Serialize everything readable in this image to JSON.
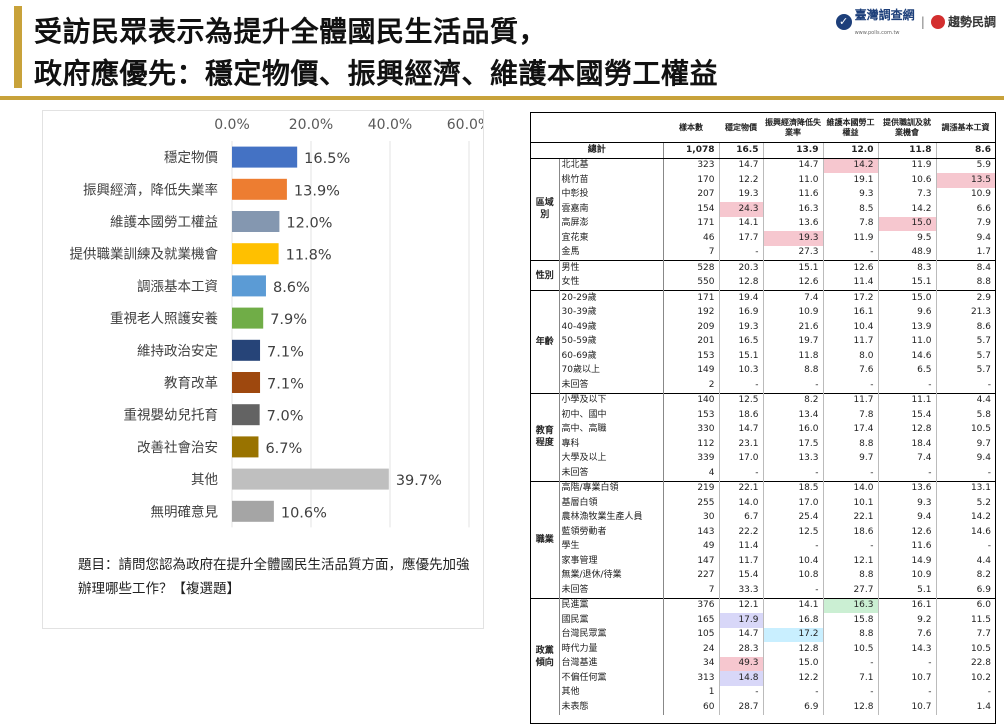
{
  "header": {
    "title_line1": "受訪民眾表示為提升全體國民生活品質，",
    "title_line2": "政府應優先：穩定物價、振興經濟、維護本國勞工權益",
    "logo_primary": "臺灣調查網",
    "logo_primary_sub": "www.polls.com.tw",
    "logo_secondary": "趨勢民調"
  },
  "chart_data": {
    "type": "bar",
    "orientation": "horizontal",
    "categories": [
      "穩定物價",
      "振興經濟，降低失業率",
      "維護本國勞工權益",
      "提供職業訓練及就業機會",
      "調漲基本工資",
      "重視老人照護安養",
      "維持政治安定",
      "教育改革",
      "重視嬰幼兒托育",
      "改善社會治安",
      "其他",
      "無明確意見"
    ],
    "values": [
      16.5,
      13.9,
      12.0,
      11.8,
      8.6,
      7.9,
      7.1,
      7.1,
      7.0,
      6.7,
      39.7,
      10.6
    ],
    "value_labels": [
      "16.5%",
      "13.9%",
      "12.0%",
      "11.8%",
      "8.6%",
      "7.9%",
      "7.1%",
      "7.1%",
      "7.0%",
      "6.7%",
      "39.7%",
      "10.6%"
    ],
    "colors": [
      "#4472c4",
      "#ed7d31",
      "#8497b0",
      "#ffc000",
      "#5b9bd5",
      "#70ad47",
      "#264478",
      "#9e480e",
      "#636363",
      "#997300",
      "#bfbfbf",
      "#a5a5a5"
    ],
    "xlim": [
      0,
      60
    ],
    "xticks": [
      "0.0%",
      "20.0%",
      "40.0%",
      "60.0%"
    ],
    "grid": true,
    "legend": "none"
  },
  "note": "題目：請問您認為政府在提升全體國民生活品質方面，應優先加強辦理哪些工作？【複選題】",
  "table": {
    "columns": [
      "",
      "",
      "樣本數",
      "穩定物價",
      "振興經濟降低失業率",
      "維護本國勞工權益",
      "提供職訓及就業機會",
      "調漲基本工資"
    ],
    "total": {
      "label": "總計",
      "values": [
        "1,078",
        "16.5",
        "13.9",
        "12.0",
        "11.8",
        "8.6"
      ]
    },
    "groups": [
      {
        "name": "區域別",
        "rows": [
          {
            "label": "北北基",
            "values": [
              "323",
              "14.7",
              "14.7",
              "14.2",
              "11.9",
              "5.9"
            ],
            "hl": {
              "4": "red"
            }
          },
          {
            "label": "桃竹苗",
            "values": [
              "170",
              "12.2",
              "11.0",
              "19.1",
              "10.6",
              "13.5"
            ],
            "hl": {
              "6": "red"
            }
          },
          {
            "label": "中彰投",
            "values": [
              "207",
              "19.3",
              "11.6",
              "9.3",
              "7.3",
              "10.9"
            ]
          },
          {
            "label": "雲嘉南",
            "values": [
              "154",
              "24.3",
              "16.3",
              "8.5",
              "14.2",
              "6.6"
            ],
            "hl": {
              "2": "red"
            }
          },
          {
            "label": "高屏澎",
            "values": [
              "171",
              "14.1",
              "13.6",
              "7.8",
              "15.0",
              "7.9"
            ],
            "hl": {
              "5": "red"
            }
          },
          {
            "label": "宜花東",
            "values": [
              "46",
              "17.7",
              "19.3",
              "11.9",
              "9.5",
              "9.4"
            ],
            "hl": {
              "3": "red"
            }
          },
          {
            "label": "金馬",
            "values": [
              "7",
              "-",
              "27.3",
              "-",
              "48.9",
              "1.7"
            ]
          }
        ]
      },
      {
        "name": "性別",
        "rows": [
          {
            "label": "男性",
            "values": [
              "528",
              "20.3",
              "15.1",
              "12.6",
              "8.3",
              "8.4"
            ]
          },
          {
            "label": "女性",
            "values": [
              "550",
              "12.8",
              "12.6",
              "11.4",
              "15.1",
              "8.8"
            ]
          }
        ]
      },
      {
        "name": "年齡",
        "rows": [
          {
            "label": "20-29歲",
            "values": [
              "171",
              "19.4",
              "7.4",
              "17.2",
              "15.0",
              "2.9"
            ]
          },
          {
            "label": "30-39歲",
            "values": [
              "192",
              "16.9",
              "10.9",
              "16.1",
              "9.6",
              "21.3"
            ]
          },
          {
            "label": "40-49歲",
            "values": [
              "209",
              "19.3",
              "21.6",
              "10.4",
              "13.9",
              "8.6"
            ]
          },
          {
            "label": "50-59歲",
            "values": [
              "201",
              "16.5",
              "19.7",
              "11.7",
              "11.0",
              "5.7"
            ]
          },
          {
            "label": "60-69歲",
            "values": [
              "153",
              "15.1",
              "11.8",
              "8.0",
              "14.6",
              "5.7"
            ]
          },
          {
            "label": "70歲以上",
            "values": [
              "149",
              "10.3",
              "8.8",
              "7.6",
              "6.5",
              "5.7"
            ]
          },
          {
            "label": "未回答",
            "values": [
              "2",
              "-",
              "-",
              "-",
              "-",
              "-"
            ]
          }
        ]
      },
      {
        "name": "教育程度",
        "rows": [
          {
            "label": "小學及以下",
            "values": [
              "140",
              "12.5",
              "8.2",
              "11.7",
              "11.1",
              "4.4"
            ]
          },
          {
            "label": "初中、國中",
            "values": [
              "153",
              "18.6",
              "13.4",
              "7.8",
              "15.4",
              "5.8"
            ]
          },
          {
            "label": "高中、高職",
            "values": [
              "330",
              "14.7",
              "16.0",
              "17.4",
              "12.8",
              "10.5"
            ]
          },
          {
            "label": "專科",
            "values": [
              "112",
              "23.1",
              "17.5",
              "8.8",
              "18.4",
              "9.7"
            ]
          },
          {
            "label": "大學及以上",
            "values": [
              "339",
              "17.0",
              "13.3",
              "9.7",
              "7.4",
              "9.4"
            ]
          },
          {
            "label": "未回答",
            "values": [
              "4",
              "-",
              "-",
              "-",
              "-",
              "-"
            ]
          }
        ]
      },
      {
        "name": "職業",
        "rows": [
          {
            "label": "高階/專業白領",
            "values": [
              "219",
              "22.1",
              "18.5",
              "14.0",
              "13.6",
              "13.1"
            ]
          },
          {
            "label": "基層白領",
            "values": [
              "255",
              "14.0",
              "17.0",
              "10.1",
              "9.3",
              "5.2"
            ]
          },
          {
            "label": "農林漁牧業生產人員",
            "values": [
              "30",
              "6.7",
              "25.4",
              "22.1",
              "9.4",
              "14.2"
            ]
          },
          {
            "label": "藍領勞動者",
            "values": [
              "143",
              "22.2",
              "12.5",
              "18.6",
              "12.6",
              "14.6"
            ]
          },
          {
            "label": "學生",
            "values": [
              "49",
              "11.4",
              "-",
              "-",
              "11.6",
              "-"
            ]
          },
          {
            "label": "家事管理",
            "values": [
              "147",
              "11.7",
              "10.4",
              "12.1",
              "14.9",
              "4.4"
            ]
          },
          {
            "label": "無業/退休/待業",
            "values": [
              "227",
              "15.4",
              "10.8",
              "8.8",
              "10.9",
              "8.2"
            ]
          },
          {
            "label": "未回答",
            "values": [
              "7",
              "33.3",
              "-",
              "27.7",
              "5.1",
              "6.9"
            ]
          }
        ]
      },
      {
        "name": "政黨傾向",
        "rows": [
          {
            "label": "民進黨",
            "values": [
              "376",
              "12.1",
              "14.1",
              "16.3",
              "16.1",
              "6.0"
            ],
            "hl": {
              "4": "green"
            }
          },
          {
            "label": "國民黨",
            "values": [
              "165",
              "17.9",
              "16.8",
              "15.8",
              "9.2",
              "11.5"
            ],
            "hl": {
              "2": "purple"
            }
          },
          {
            "label": "台灣民眾黨",
            "values": [
              "105",
              "14.7",
              "17.2",
              "8.8",
              "7.6",
              "7.7"
            ],
            "hl": {
              "3": "cyan"
            }
          },
          {
            "label": "時代力量",
            "values": [
              "24",
              "28.3",
              "12.8",
              "10.5",
              "14.3",
              "10.5"
            ]
          },
          {
            "label": "台灣基進",
            "values": [
              "34",
              "49.3",
              "15.0",
              "-",
              "-",
              "22.8"
            ],
            "hl": {
              "2": "red"
            }
          },
          {
            "label": "不偏任何黨",
            "values": [
              "313",
              "14.8",
              "12.2",
              "7.1",
              "10.7",
              "10.2"
            ],
            "hl": {
              "2": "purple"
            }
          },
          {
            "label": "其他",
            "values": [
              "1",
              "-",
              "-",
              "-",
              "-",
              "-"
            ]
          },
          {
            "label": "未表態",
            "values": [
              "60",
              "28.7",
              "6.9",
              "12.8",
              "10.7",
              "1.4"
            ]
          }
        ]
      }
    ]
  }
}
